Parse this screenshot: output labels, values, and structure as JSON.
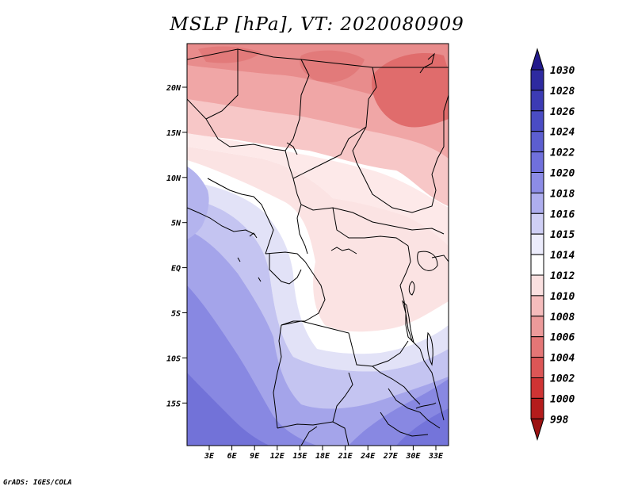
{
  "title": "MSLP [hPa], VT: 2020080909",
  "credit": "GrADS: IGES/COLA",
  "map": {
    "lat_labels": [
      "20N",
      "15N",
      "10N",
      "5N",
      "EQ",
      "5S",
      "10S",
      "15S"
    ],
    "lon_labels": [
      "3E",
      "6E",
      "9E",
      "12E",
      "15E",
      "18E",
      "21E",
      "24E",
      "27E",
      "30E",
      "33E"
    ]
  },
  "colorbar": {
    "levels": [
      "1030",
      "1028",
      "1026",
      "1024",
      "1022",
      "1020",
      "1018",
      "1016",
      "1015",
      "1014",
      "1012",
      "1010",
      "1008",
      "1006",
      "1004",
      "1002",
      "1000",
      "998"
    ],
    "colors": [
      "#231a8c",
      "#2e2aa0",
      "#3c3bb4",
      "#4a4cc4",
      "#5c5ed0",
      "#7070dc",
      "#8c8ce6",
      "#aeaeee",
      "#cfcff5",
      "#ececfc",
      "#ffffff",
      "#fae0e0",
      "#f5bcbc",
      "#ec9a9a",
      "#e47676",
      "#dc5656",
      "#cf3434",
      "#b41c1c",
      "#9c1212"
    ]
  }
}
